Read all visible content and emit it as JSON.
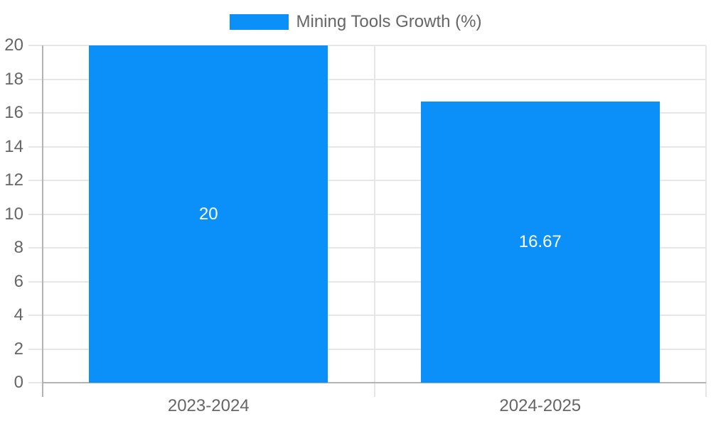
{
  "chart_data": {
    "type": "bar",
    "series_name": "Mining Tools Growth (%)",
    "categories": [
      "2023-2024",
      "2024-2025"
    ],
    "values": [
      20,
      16.67
    ],
    "value_labels": [
      "20",
      "16.67"
    ],
    "ylim": [
      0,
      20
    ],
    "yticks": [
      0,
      2,
      4,
      6,
      8,
      10,
      12,
      14,
      16,
      18,
      20
    ],
    "grid": true,
    "legend_position": "top",
    "colors": {
      "bar": "#0b90f9",
      "grid": "#e6e6e6",
      "axis": "#b3b3b3",
      "text": "#666666",
      "data_label": "#ffffff"
    }
  }
}
